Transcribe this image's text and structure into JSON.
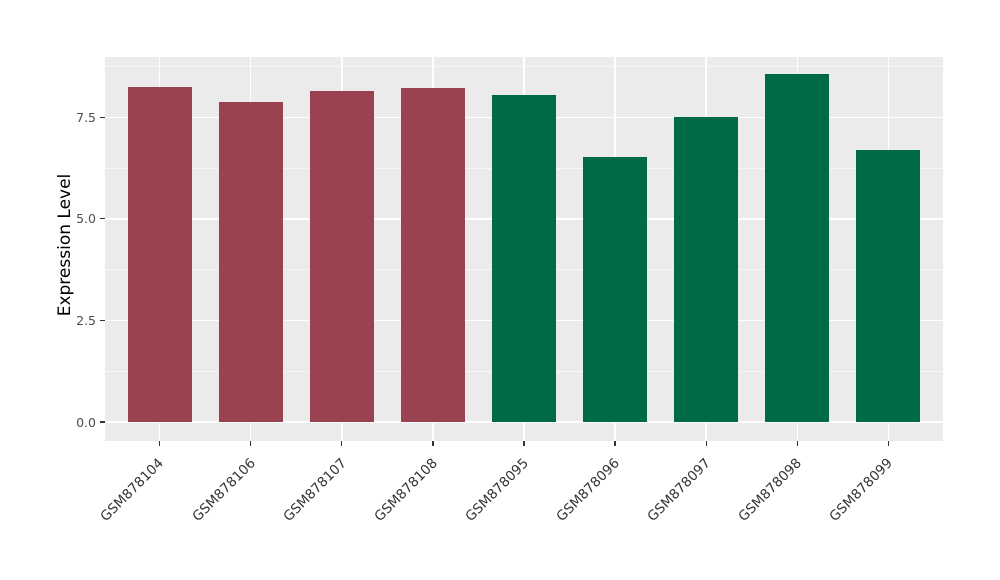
{
  "chart_data": {
    "type": "bar",
    "title": "",
    "xlabel": "",
    "ylabel": "Expression Level",
    "categories": [
      "GSM878104",
      "GSM878106",
      "GSM878107",
      "GSM878108",
      "GSM878095",
      "GSM878096",
      "GSM878097",
      "GSM878098",
      "GSM878099"
    ],
    "values": [
      8.25,
      7.87,
      8.16,
      8.22,
      8.05,
      6.52,
      7.5,
      8.56,
      6.69
    ],
    "bar_colors": [
      "#9B4251",
      "#9B4251",
      "#9B4251",
      "#9B4251",
      "#006948",
      "#006948",
      "#006948",
      "#006948",
      "#006948"
    ],
    "y_ticks": {
      "values": [
        0,
        2.5,
        5,
        7.5
      ],
      "labels": [
        "0.0",
        "2.5",
        "5.0",
        "7.5"
      ]
    },
    "y_minor_ticks": [
      1.25,
      3.75,
      6.25,
      8.75
    ],
    "ylim": [
      0,
      9
    ],
    "grid": true,
    "legend": false,
    "panel_background": "#EBEBEB",
    "grid_color": "#FFFFFF",
    "bar_width_fraction": 0.7
  }
}
